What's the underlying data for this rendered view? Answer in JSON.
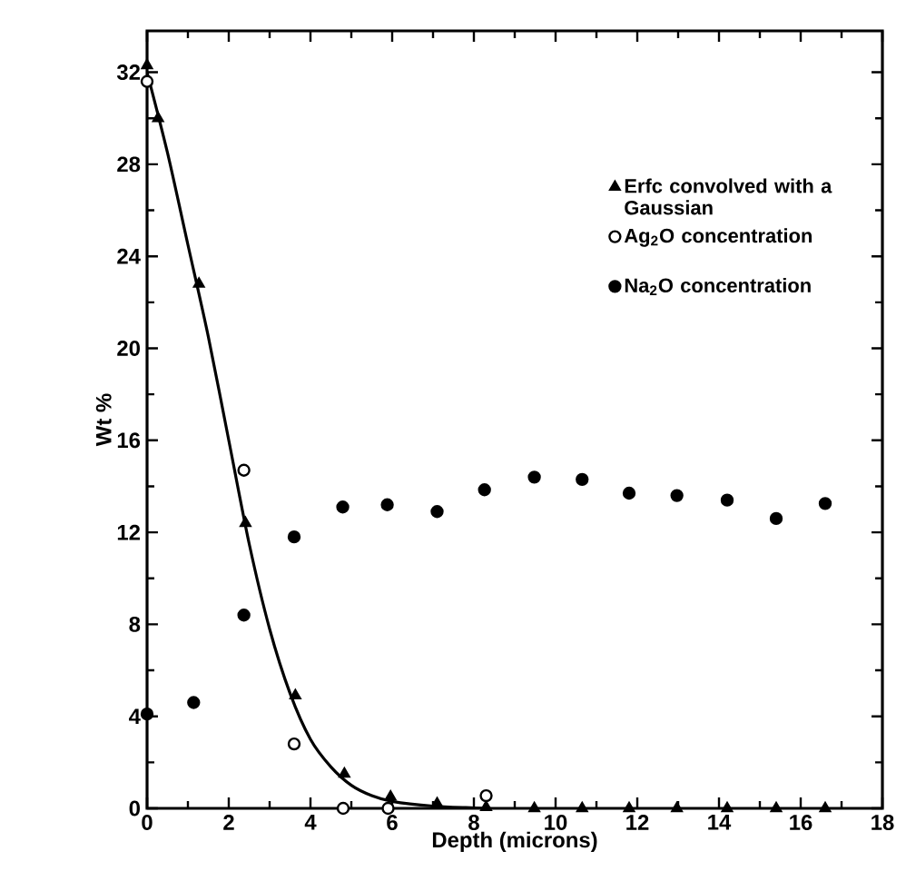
{
  "chart_data": {
    "type": "scatter",
    "xlabel": "Depth  (microns)",
    "ylabel": "Wt %",
    "xlim": [
      0,
      18
    ],
    "ylim": [
      0,
      33.8
    ],
    "xticks": [
      0,
      2,
      4,
      6,
      8,
      10,
      12,
      14,
      16,
      18
    ],
    "yticks": [
      0,
      4,
      8,
      12,
      16,
      20,
      24,
      28,
      32
    ],
    "legend": "top right",
    "grid": false,
    "series": [
      {
        "type": "line",
        "color": "#000000",
        "marker": "none",
        "line_style": "solid",
        "x": [
          0,
          0.5,
          1,
          1.5,
          2,
          2.5,
          3,
          3.5,
          4,
          4.5,
          5,
          5.5,
          6,
          7,
          8,
          8.3
        ],
        "values": [
          32,
          28.5,
          24.5,
          20.5,
          16,
          11.5,
          7.8,
          5,
          3,
          1.8,
          1,
          0.55,
          0.3,
          0.1,
          0.02,
          0
        ]
      },
      {
        "name": "Erfc convolved with a Gaussian",
        "color": "#000000",
        "marker": "triangle",
        "x": [
          0,
          0.27,
          1.27,
          2.41,
          3.63,
          4.83,
          5.96,
          7.1,
          8.3,
          9.48,
          10.65,
          11.8,
          12.97,
          14.2,
          15.4,
          16.6
        ],
        "values": [
          32.3,
          30,
          22.8,
          12.4,
          4.9,
          1.5,
          0.5,
          0.2,
          0.05,
          0,
          0,
          0,
          0,
          0,
          0,
          0
        ]
      },
      {
        "name": "Ag$_{2}$O concentration",
        "color": "#ffffff",
        "marker": "circle",
        "x": [
          0,
          2.37,
          3.6,
          4.8,
          5.9,
          8.3
        ],
        "values": [
          31.6,
          14.7,
          2.8,
          0,
          0,
          0.55
        ]
      },
      {
        "name": "Na$_{2}$O concentration",
        "color": "#000000",
        "marker": "circle",
        "x": [
          0,
          1.14,
          2.37,
          3.6,
          4.79,
          5.88,
          7.1,
          8.26,
          9.48,
          10.65,
          11.8,
          12.97,
          14.2,
          15.4,
          16.6
        ],
        "values": [
          4.1,
          4.6,
          8.4,
          11.8,
          13.1,
          13.2,
          12.9,
          13.85,
          14.4,
          14.3,
          13.7,
          13.6,
          13.4,
          12.6,
          13.25
        ]
      }
    ]
  }
}
